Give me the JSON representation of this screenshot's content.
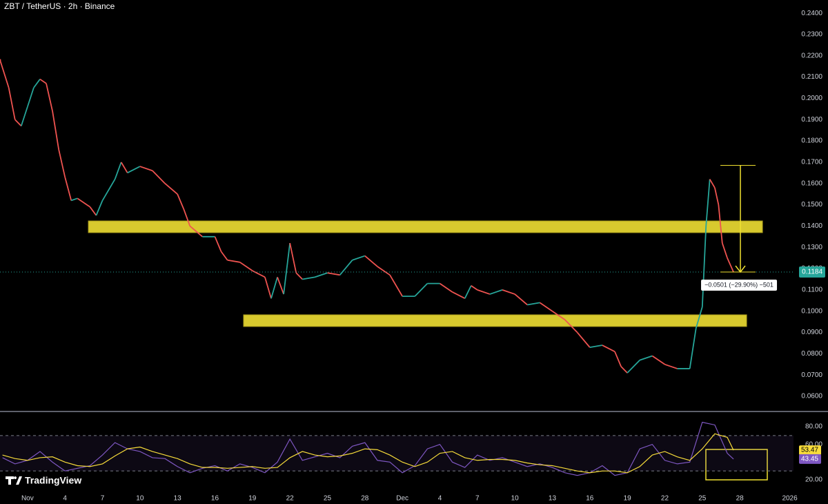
{
  "title": "ZBT / TetherUS · 2h · Binance",
  "logo": "TradingView",
  "chart_data": [
    {
      "type": "line",
      "x": [
        -2.2,
        -1.5,
        -1,
        -0.5,
        0,
        0.5,
        1,
        1.5,
        2,
        2.5,
        3,
        3.5,
        4,
        5,
        5.5,
        6,
        7,
        7.5,
        8,
        9,
        10,
        11,
        12,
        12.5,
        13,
        14,
        15,
        15.5,
        16,
        17,
        18,
        19,
        19.5,
        20,
        20.5,
        21,
        21.5,
        22,
        23,
        24,
        25,
        26,
        27,
        28,
        29,
        30,
        31,
        32,
        33,
        34,
        35,
        35.5,
        36,
        37,
        38,
        39,
        40,
        41,
        42,
        43,
        44,
        45,
        46,
        47,
        47.5,
        48,
        49,
        50,
        51,
        52,
        53,
        53.5,
        54,
        54.3,
        54.6,
        55,
        55.3,
        55.6,
        56,
        56.5
      ],
      "values": [
        0.218,
        0.205,
        0.19,
        0.187,
        0.196,
        0.205,
        0.209,
        0.207,
        0.194,
        0.176,
        0.163,
        0.152,
        0.153,
        0.149,
        0.145,
        0.152,
        0.162,
        0.17,
        0.165,
        0.168,
        0.166,
        0.16,
        0.155,
        0.148,
        0.14,
        0.135,
        0.135,
        0.128,
        0.124,
        0.123,
        0.119,
        0.116,
        0.106,
        0.116,
        0.108,
        0.132,
        0.118,
        0.115,
        0.116,
        0.118,
        0.117,
        0.124,
        0.126,
        0.121,
        0.117,
        0.107,
        0.107,
        0.113,
        0.113,
        0.109,
        0.106,
        0.112,
        0.11,
        0.108,
        0.11,
        0.108,
        0.103,
        0.104,
        0.1,
        0.096,
        0.09,
        0.083,
        0.084,
        0.081,
        0.074,
        0.071,
        0.077,
        0.079,
        0.075,
        0.073,
        0.073,
        0.092,
        0.102,
        0.14,
        0.162,
        0.158,
        0.15,
        0.132,
        0.125,
        0.1184
      ],
      "up_color": "#26a69a",
      "down_color": "#ef5350",
      "xlim": [
        -2.2,
        61.3
      ],
      "ylim": [
        0.0532,
        0.2462
      ],
      "yticks": [
        {
          "value": 0.06,
          "label": "0.0600"
        },
        {
          "value": 0.07,
          "label": "0.0700"
        },
        {
          "value": 0.08,
          "label": "0.0800"
        },
        {
          "value": 0.09,
          "label": "0.0900"
        },
        {
          "value": 0.1,
          "label": "0.1000"
        },
        {
          "value": 0.11,
          "label": "0.1100"
        },
        {
          "value": 0.12,
          "label": "0.1200"
        },
        {
          "value": 0.13,
          "label": "0.1300"
        },
        {
          "value": 0.14,
          "label": "0.1400"
        },
        {
          "value": 0.15,
          "label": "0.1500"
        },
        {
          "value": 0.16,
          "label": "0.1600"
        },
        {
          "value": 0.17,
          "label": "0.1700"
        },
        {
          "value": 0.18,
          "label": "0.1800"
        },
        {
          "value": 0.19,
          "label": "0.1900"
        },
        {
          "value": 0.2,
          "label": "0.2000"
        },
        {
          "value": 0.21,
          "label": "0.2100"
        },
        {
          "value": 0.22,
          "label": "0.2200"
        },
        {
          "value": 0.23,
          "label": "0.2300"
        },
        {
          "value": 0.24,
          "label": "0.2400"
        }
      ],
      "zones": [
        {
          "xlim": [
            4.87,
            58.82
          ],
          "ylim": [
            0.1369,
            0.1424
          ]
        },
        {
          "xlim": [
            17.29,
            57.55
          ],
          "ylim": [
            0.0928,
            0.0983
          ]
        }
      ],
      "zone_color": "#d8c92e",
      "measure": {
        "x": 57.05,
        "from": 0.1685,
        "to": 0.1184,
        "label": "−0.0501 (−29.90%) −501",
        "color": "#f0e130"
      }
    },
    {
      "type": "line",
      "x": [
        -2,
        -1,
        0,
        1,
        2,
        3,
        4,
        5,
        6,
        7,
        8,
        9,
        10,
        11,
        12,
        13,
        14,
        15,
        16,
        17,
        18,
        19,
        20,
        21,
        22,
        23,
        24,
        25,
        26,
        27,
        28,
        29,
        30,
        31,
        32,
        33,
        34,
        35,
        36,
        37,
        38,
        39,
        40,
        41,
        42,
        43,
        44,
        45,
        46,
        47,
        48,
        49,
        50,
        51,
        52,
        53,
        54,
        55,
        56,
        56.5
      ],
      "series": [
        {
          "color": "#7e57c2",
          "values": [
            45,
            38,
            42,
            52,
            40,
            30,
            33,
            36,
            48,
            62,
            55,
            52,
            45,
            44,
            35,
            28,
            33,
            36,
            30,
            38,
            34,
            28,
            40,
            66,
            42,
            46,
            50,
            45,
            58,
            62,
            42,
            40,
            28,
            36,
            55,
            60,
            40,
            34,
            48,
            42,
            45,
            40,
            35,
            38,
            34,
            28,
            25,
            28,
            36,
            25,
            28,
            55,
            60,
            42,
            38,
            40,
            85,
            82,
            50,
            43.45
          ]
        },
        {
          "color": "#f7dc3a",
          "values": [
            48,
            44,
            42,
            45,
            46,
            40,
            36,
            35,
            38,
            47,
            55,
            57,
            52,
            48,
            44,
            38,
            34,
            34,
            33,
            34,
            35,
            33,
            34,
            45,
            52,
            48,
            46,
            47,
            50,
            55,
            54,
            48,
            40,
            35,
            40,
            50,
            52,
            45,
            42,
            43,
            43,
            42,
            39,
            37,
            36,
            33,
            30,
            28,
            30,
            30,
            28,
            35,
            48,
            52,
            46,
            42,
            55,
            72,
            68,
            53.47
          ]
        }
      ],
      "xlim": [
        -2.2,
        61.3
      ],
      "ylim": [
        8.3,
        96.4
      ],
      "yticks": [
        {
          "value": 20,
          "label": "20.00"
        },
        {
          "value": 60,
          "label": "60.00"
        },
        {
          "value": 80,
          "label": "80.00"
        }
      ],
      "bands": [
        30,
        70
      ],
      "xticks": [
        {
          "value": 0,
          "label": "Nov"
        },
        {
          "value": 3,
          "label": "4"
        },
        {
          "value": 6,
          "label": "7"
        },
        {
          "value": 9,
          "label": "10"
        },
        {
          "value": 12,
          "label": "13"
        },
        {
          "value": 15,
          "label": "16"
        },
        {
          "value": 18,
          "label": "19"
        },
        {
          "value": 21,
          "label": "22"
        },
        {
          "value": 24,
          "label": "25"
        },
        {
          "value": 27,
          "label": "28"
        },
        {
          "value": 30,
          "label": "Dec"
        },
        {
          "value": 33,
          "label": "4"
        },
        {
          "value": 36,
          "label": "7"
        },
        {
          "value": 39,
          "label": "10"
        },
        {
          "value": 42,
          "label": "13"
        },
        {
          "value": 45,
          "label": "16"
        },
        {
          "value": 48,
          "label": "19"
        },
        {
          "value": 51,
          "label": "22"
        },
        {
          "value": 54,
          "label": "25"
        },
        {
          "value": 57,
          "label": "28"
        },
        {
          "value": 61,
          "label": "2026"
        }
      ]
    }
  ]
}
